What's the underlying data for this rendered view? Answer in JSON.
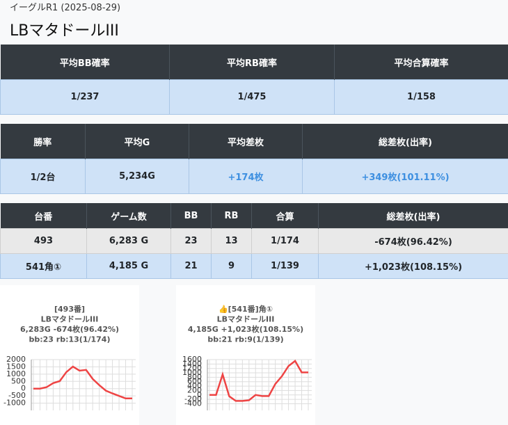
{
  "header": {
    "subtitle": "イーグルR1 (2025-08-29)",
    "title": "LBマタドールIII"
  },
  "tables": [
    {
      "columns": [
        "平均BB確率",
        "平均RB確率",
        "平均合算確率"
      ],
      "rows": [
        [
          "1/237",
          "1/475",
          "1/158"
        ]
      ]
    },
    {
      "columns": [
        "勝率",
        "平均G",
        "平均差枚",
        "総差枚(出率)"
      ],
      "rows": [
        [
          "1/2台",
          "5,234G",
          "+174枚",
          "+349枚(101.11%)"
        ]
      ]
    },
    {
      "columns": [
        "台番",
        "ゲーム数",
        "BB",
        "RB",
        "合算",
        "総差枚(出率)"
      ],
      "rows": [
        [
          "493",
          "6,283 G",
          "23",
          "13",
          "1/174",
          "-674枚(96.42%)"
        ],
        [
          "541角①",
          "4,185 G",
          "21",
          "9",
          "1/139",
          "+1,023枚(108.15%)"
        ]
      ]
    }
  ],
  "graphs": [
    {
      "type": "line",
      "lines": [
        "[493番]",
        "LBマタドールIII",
        "6,283G -674枚(96.42%)",
        "bb:23 rb:13(1/174)"
      ],
      "color": "#ee4444",
      "ylim": [
        -1500,
        2000
      ],
      "yticks": [
        2000,
        1500,
        1000,
        500,
        0,
        -500,
        -1000
      ],
      "values": [
        0,
        0,
        100,
        380,
        520,
        1140,
        1520,
        1240,
        1290,
        670,
        240,
        -140,
        -330,
        -500,
        -674,
        -674
      ]
    },
    {
      "type": "line",
      "lines": [
        "👍[541番]角①",
        "LBマタドールIII",
        "4,185G +1,023枚(108.15%)",
        "bb:21 rb:9(1/139)"
      ],
      "color": "#ee4444",
      "ylim": [
        -700,
        1600
      ],
      "yticks": [
        1600,
        1400,
        1200,
        1000,
        800,
        600,
        400,
        200,
        0,
        -200,
        -400
      ],
      "values": [
        0,
        0,
        930,
        -60,
        -270,
        -270,
        -240,
        0,
        -50,
        -50,
        500,
        850,
        1310,
        1540,
        1023,
        1023
      ]
    }
  ]
}
